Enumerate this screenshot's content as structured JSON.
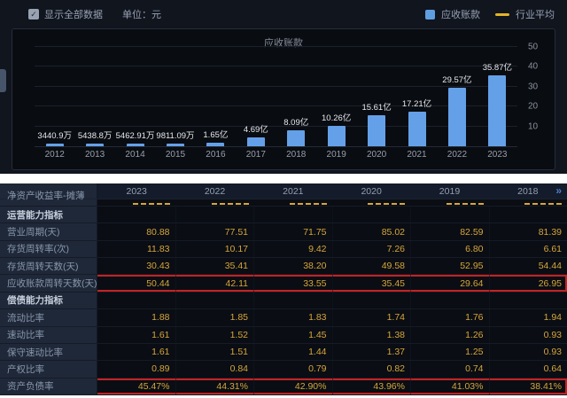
{
  "toolbar": {
    "show_all_label": "显示全部数据",
    "unit_label": "单位：元",
    "legend": [
      {
        "label": "应收账款",
        "type": "bar",
        "color": "#5e9fe0"
      },
      {
        "label": "行业平均",
        "type": "line",
        "color": "#e3b428"
      }
    ]
  },
  "chart_data": {
    "type": "bar",
    "title": "应收账款",
    "unit": "元",
    "categories": [
      "2012",
      "2013",
      "2014",
      "2015",
      "2016",
      "2017",
      "2018",
      "2019",
      "2020",
      "2021",
      "2022",
      "2023"
    ],
    "series": [
      {
        "name": "应收账款",
        "values_yi": [
          0.34409,
          0.54388,
          0.546291,
          0.981109,
          1.65,
          4.69,
          8.09,
          10.26,
          15.61,
          17.21,
          29.57,
          35.87
        ],
        "labels": [
          "3440.9万",
          "5438.8万",
          "5462.91万",
          "9811.09万",
          "1.65亿",
          "4.69亿",
          "8.09亿",
          "10.26亿",
          "15.61亿",
          "17.21亿",
          "29.57亿",
          "35.87亿"
        ]
      }
    ],
    "ylim": [
      0,
      50
    ],
    "yticks": [
      10,
      20,
      30,
      40,
      50
    ],
    "grid": true,
    "legend_position": "top-right",
    "bar_color": "#64a0e8"
  },
  "table": {
    "first_row_label": "净资产收益率-摊薄",
    "columns": [
      "2023",
      "2022",
      "2021",
      "2020",
      "2019",
      "2018"
    ],
    "more_indicator": "»",
    "sections": [
      {
        "title": "运营能力指标",
        "rows": [
          {
            "label": "营业周期(天)",
            "values": [
              "80.88",
              "77.51",
              "71.75",
              "85.02",
              "82.59",
              "81.39"
            ],
            "highlight": false
          },
          {
            "label": "存货周转率(次)",
            "values": [
              "11.83",
              "10.17",
              "9.42",
              "7.26",
              "6.80",
              "6.61"
            ],
            "highlight": false
          },
          {
            "label": "存货周转天数(天)",
            "values": [
              "30.43",
              "35.41",
              "38.20",
              "49.58",
              "52.95",
              "54.44"
            ],
            "highlight": false
          },
          {
            "label": "应收账款周转天数(天)",
            "values": [
              "50.44",
              "42.11",
              "33.55",
              "35.45",
              "29.64",
              "26.95"
            ],
            "highlight": true
          }
        ]
      },
      {
        "title": "偿债能力指标",
        "rows": [
          {
            "label": "流动比率",
            "values": [
              "1.88",
              "1.85",
              "1.83",
              "1.74",
              "1.76",
              "1.94"
            ],
            "highlight": false
          },
          {
            "label": "速动比率",
            "values": [
              "1.61",
              "1.52",
              "1.45",
              "1.38",
              "1.26",
              "0.93"
            ],
            "highlight": false
          },
          {
            "label": "保守速动比率",
            "values": [
              "1.61",
              "1.51",
              "1.44",
              "1.37",
              "1.25",
              "0.93"
            ],
            "highlight": false
          },
          {
            "label": "产权比率",
            "values": [
              "0.89",
              "0.84",
              "0.79",
              "0.82",
              "0.74",
              "0.64"
            ],
            "highlight": false
          },
          {
            "label": "资产负债率",
            "values": [
              "45.47%",
              "44.31%",
              "42.90%",
              "43.96%",
              "41.03%",
              "38.41%"
            ],
            "highlight": true
          }
        ]
      }
    ]
  },
  "colors": {
    "bar_blue": "#64a0e8",
    "industry_yellow": "#e3b428",
    "value_orange": "#d6a63c",
    "highlight_red": "#c62222",
    "panel_bg": "#090c11",
    "table_label_bg": "#1f2838"
  },
  "icons": {
    "checkbox_check": "✓"
  }
}
